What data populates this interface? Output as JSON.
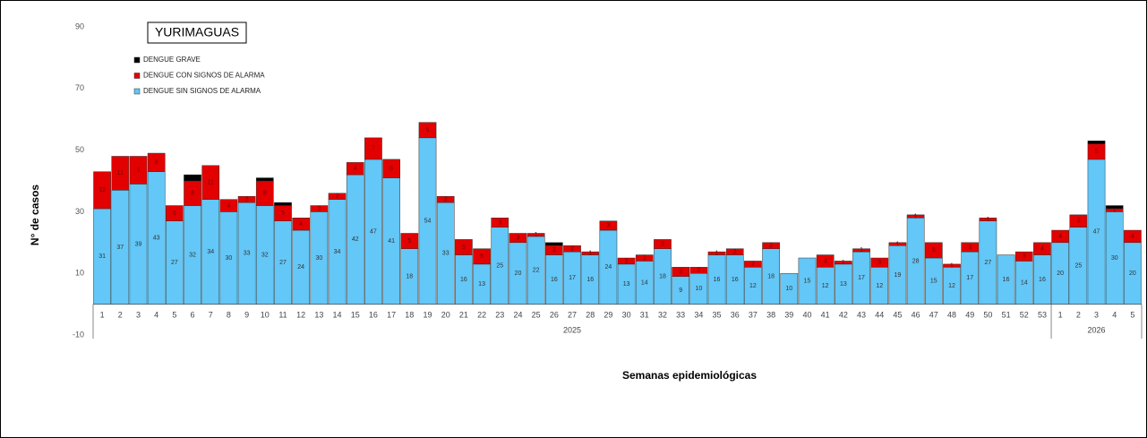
{
  "chart_data": {
    "type": "stacked_bar",
    "title": "YURIMAGUAS",
    "x_label": "Semanas epidemiológicas",
    "y_label": "N° de casos",
    "groups": [
      {
        "name": "2025",
        "categories": [
          "1",
          "2",
          "3",
          "4",
          "5",
          "6",
          "7",
          "8",
          "9",
          "10",
          "11",
          "12",
          "13",
          "14",
          "15",
          "16",
          "17",
          "18",
          "19",
          "20",
          "21",
          "22",
          "23",
          "24",
          "25",
          "26",
          "27",
          "28",
          "29",
          "30",
          "31",
          "32",
          "33",
          "34",
          "35",
          "36",
          "37",
          "38",
          "39",
          "40",
          "41",
          "42",
          "43",
          "44",
          "45",
          "46",
          "47",
          "48",
          "49",
          "50",
          "51",
          "52",
          "53"
        ]
      },
      {
        "name": "2026",
        "categories": [
          "1",
          "2",
          "3",
          "4",
          "5"
        ]
      }
    ],
    "series": [
      {
        "name": "DENGUE SIN SIGNOS DE ALARMA",
        "color": "#63c7f7",
        "values": [
          31,
          37,
          39,
          43,
          27,
          32,
          34,
          30,
          33,
          32,
          27,
          24,
          30,
          34,
          42,
          47,
          41,
          18,
          54,
          33,
          16,
          13,
          25,
          20,
          22,
          16,
          17,
          16,
          24,
          13,
          14,
          18,
          9,
          10,
          16,
          16,
          12,
          18,
          10,
          15,
          12,
          13,
          17,
          12,
          19,
          28,
          15,
          12,
          17,
          27,
          16,
          14,
          16,
          20,
          25,
          47,
          30,
          20
        ]
      },
      {
        "name": "DENGUE CON SIGNOS DE ALARMA",
        "color": "#e30000",
        "values": [
          12,
          11,
          9,
          6,
          5,
          8,
          11,
          4,
          2,
          8,
          5,
          4,
          2,
          2,
          4,
          7,
          6,
          5,
          5,
          2,
          5,
          5,
          3,
          3,
          1,
          3,
          2,
          1,
          3,
          2,
          2,
          3,
          3,
          2,
          1,
          2,
          2,
          2,
          0,
          0,
          4,
          1,
          1,
          3,
          1,
          1,
          5,
          1,
          3,
          1,
          0,
          3,
          4,
          4,
          4,
          5,
          1,
          4
        ]
      },
      {
        "name": "DENGUE GRAVE",
        "color": "#000000",
        "values": [
          0,
          0,
          0,
          0,
          0,
          2,
          0,
          0,
          0,
          1,
          1,
          0,
          0,
          0,
          0,
          0,
          0,
          0,
          0,
          0,
          0,
          0,
          0,
          0,
          0,
          1,
          0,
          0,
          0,
          0,
          0,
          0,
          0,
          0,
          0,
          0,
          0,
          0,
          0,
          0,
          0,
          0,
          0,
          0,
          0,
          0,
          0,
          0,
          0,
          0,
          0,
          0,
          0,
          0,
          0,
          1,
          1,
          0
        ]
      }
    ],
    "ylim": [
      -10,
      90
    ],
    "yticks": [
      -10,
      10,
      30,
      50,
      70,
      90
    ]
  }
}
